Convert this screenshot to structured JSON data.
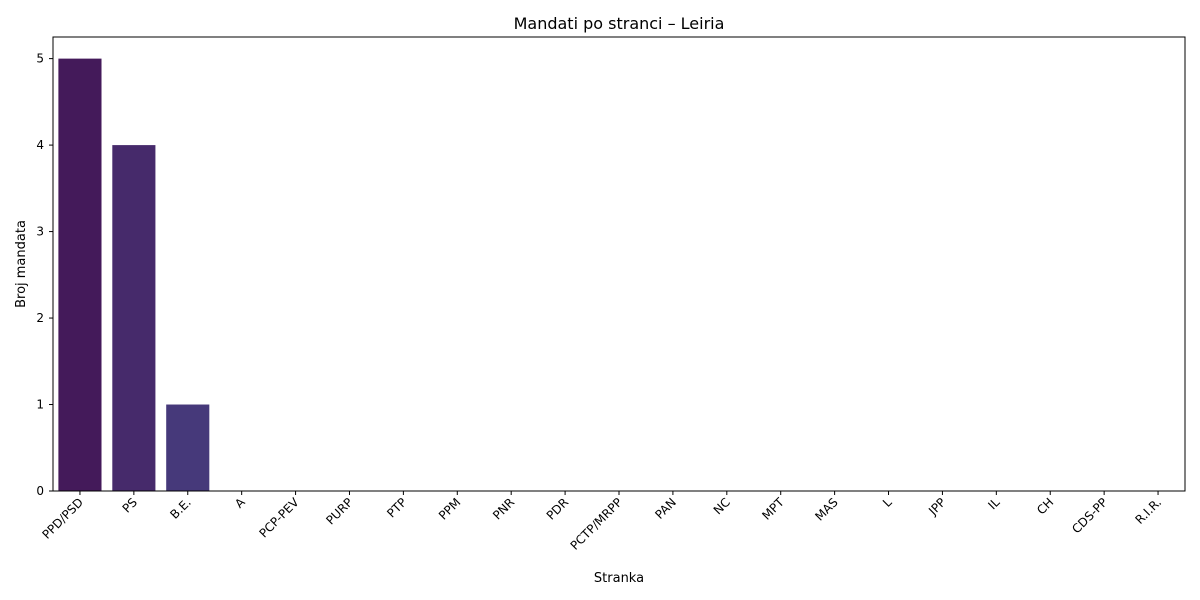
{
  "chart_data": {
    "type": "bar",
    "title": "Mandati po stranci – Leiria",
    "xlabel": "Stranka",
    "ylabel": "Broj mandata",
    "categories": [
      "PPD/PSD",
      "PS",
      "B.E.",
      "A",
      "PCP-PEV",
      "PURP",
      "PTP",
      "PPM",
      "PNR",
      "PDR",
      "PCTP/MRPP",
      "PAN",
      "NC",
      "MPT",
      "MAS",
      "L",
      "JPP",
      "IL",
      "CH",
      "CDS-PP",
      "R.I.R."
    ],
    "values": [
      5,
      4,
      1,
      0,
      0,
      0,
      0,
      0,
      0,
      0,
      0,
      0,
      0,
      0,
      0,
      0,
      0,
      0,
      0,
      0,
      0
    ],
    "ylim": [
      0,
      5.25
    ],
    "yticks": [
      0,
      1,
      2,
      3,
      4,
      5
    ],
    "grid": false,
    "colors": [
      "#441a5a",
      "#462a6b",
      "#46397a"
    ]
  }
}
